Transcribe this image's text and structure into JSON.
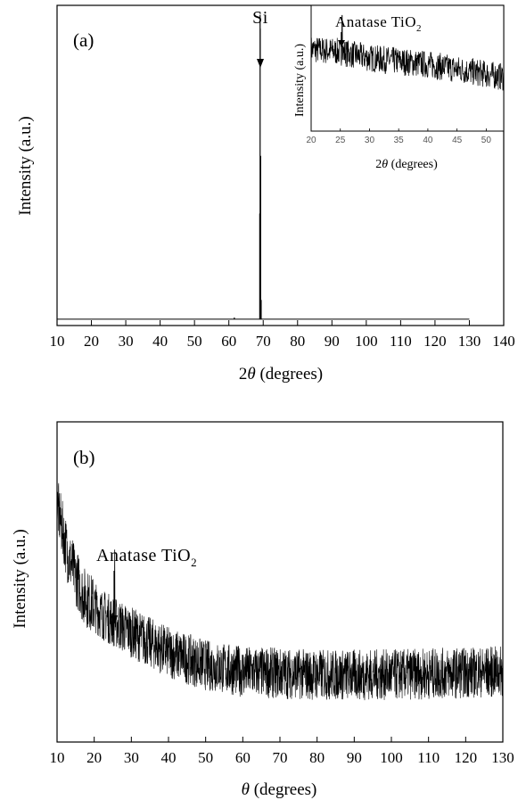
{
  "chart_data": [
    {
      "panel": "(a)",
      "type": "line",
      "xlabel_prefix": "2",
      "xlabel_symbol": "θ",
      "xlabel_unit": " (degrees)",
      "ylabel": "Intensity (a.u.)",
      "xlim": [
        10,
        140
      ],
      "x_ticks": [
        10,
        20,
        30,
        40,
        50,
        60,
        70,
        80,
        90,
        100,
        110,
        120,
        130,
        140
      ],
      "y_ticks_labeled": false,
      "data_range": [
        10,
        130
      ],
      "baseline": 0.02,
      "peaks": [
        {
          "x": 69.1,
          "y": 0.97
        },
        {
          "x": 69.25,
          "y": 0.53
        },
        {
          "x": 69.0,
          "y": 0.35
        },
        {
          "x": 69.4,
          "y": 0.08
        },
        {
          "x": 61.6,
          "y": 0.025
        }
      ],
      "annotations": [
        {
          "text": "Si",
          "x": 69.1
        }
      ],
      "inset": {
        "type": "line",
        "xlabel_prefix": "2",
        "xlabel_symbol": "θ",
        "xlabel_unit": " (degrees)",
        "ylabel": "Intensity (a.u.)",
        "xlim": [
          20,
          53
        ],
        "x_ticks": [
          20,
          25,
          30,
          35,
          40,
          45,
          50
        ],
        "trend": [
          [
            20,
            0.65
          ],
          [
            25,
            0.63
          ],
          [
            30,
            0.58
          ],
          [
            40,
            0.53
          ],
          [
            53,
            0.43
          ]
        ],
        "noise_amplitude": 0.22,
        "peaks": [
          {
            "x": 25.3,
            "y": 0.92
          }
        ],
        "annotation": {
          "text_main": "Anatase TiO",
          "text_sub": "2",
          "x": 25.3
        }
      }
    },
    {
      "panel": "(b)",
      "type": "line",
      "xlabel_prefix": "",
      "xlabel_symbol": "θ",
      "xlabel_unit": " (degrees)",
      "ylabel": "Intensity (a.u.)",
      "xlim": [
        10,
        130
      ],
      "x_ticks": [
        10,
        20,
        30,
        40,
        50,
        60,
        70,
        80,
        90,
        100,
        110,
        120,
        130
      ],
      "y_ticks_labeled": false,
      "trend": [
        [
          10,
          0.74
        ],
        [
          13,
          0.58
        ],
        [
          17,
          0.46
        ],
        [
          22,
          0.4
        ],
        [
          26,
          0.37
        ],
        [
          32,
          0.33
        ],
        [
          40,
          0.28
        ],
        [
          50,
          0.24
        ],
        [
          60,
          0.22
        ],
        [
          80,
          0.21
        ],
        [
          100,
          0.21
        ],
        [
          130,
          0.22
        ]
      ],
      "noise_amplitude": 0.16,
      "peaks": [
        {
          "x": 25.5,
          "y": 0.6
        }
      ],
      "annotation": {
        "text_main": "Anatase TiO",
        "text_sub": "2",
        "x": 25.5
      }
    }
  ]
}
